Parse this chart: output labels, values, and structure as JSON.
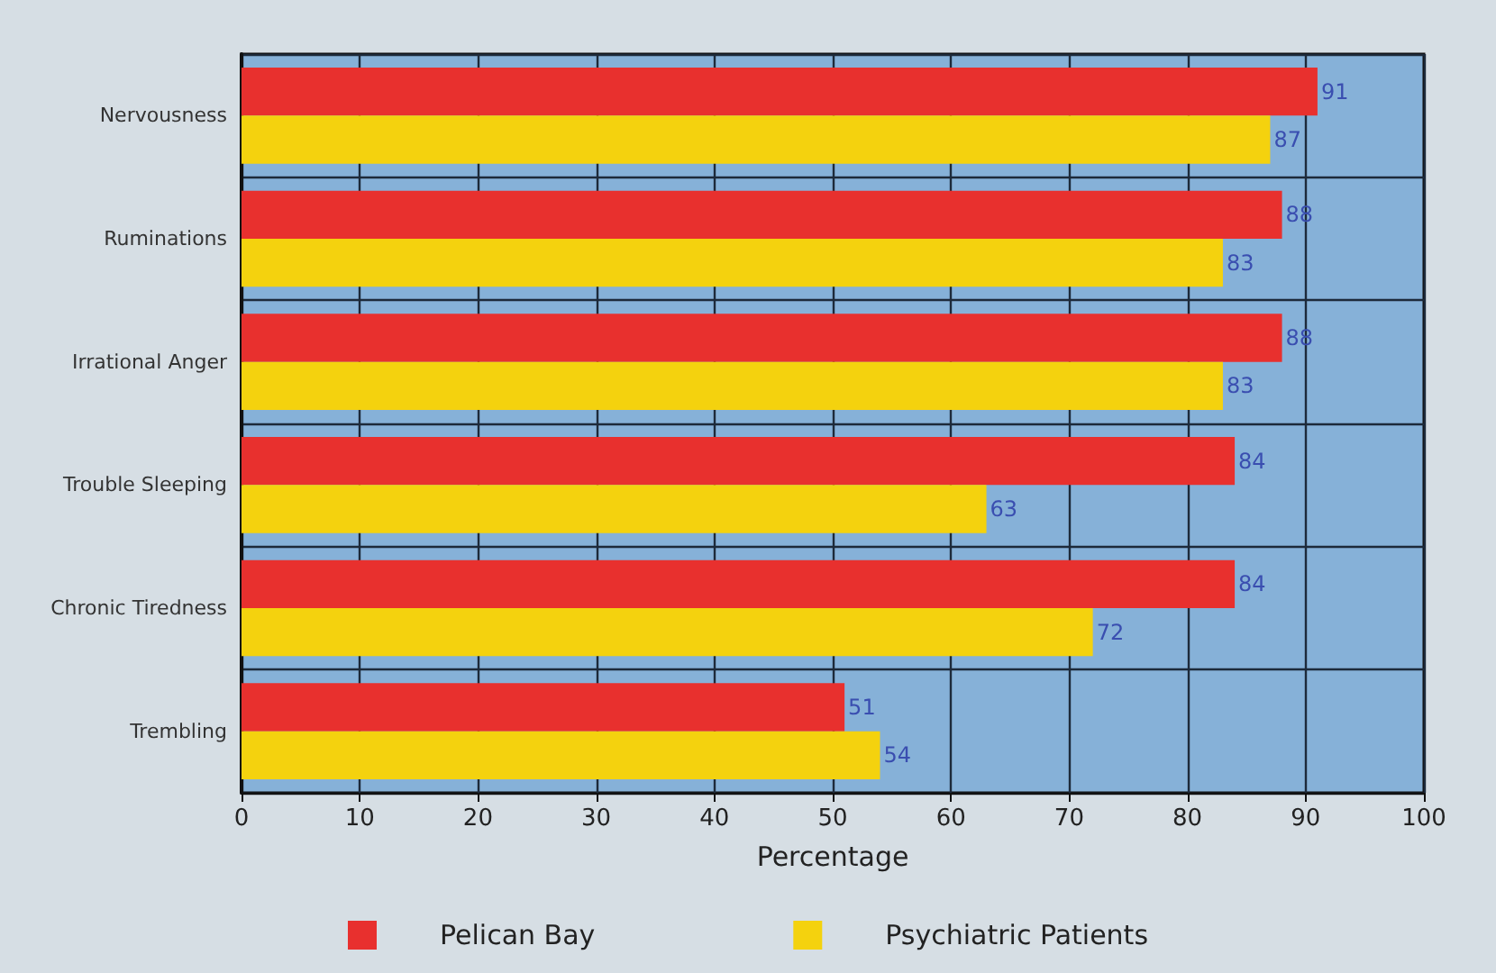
{
  "chart_data": {
    "type": "bar",
    "orientation": "horizontal",
    "xlabel": "Percentage",
    "categories": [
      "Nervousness",
      "Ruminations",
      "Irrational Anger",
      "Trouble Sleeping",
      "Chronic Tiredness",
      "Trembling"
    ],
    "series": [
      {
        "name": "Pelican Bay",
        "color": "#e8302e",
        "values": [
          91,
          88,
          88,
          84,
          84,
          51
        ]
      },
      {
        "name": "Psychiatric Patients",
        "color": "#f4d20e",
        "values": [
          87,
          83,
          83,
          63,
          72,
          54
        ]
      }
    ],
    "xlim": [
      0,
      100
    ],
    "xticks": [
      0,
      10,
      20,
      30,
      40,
      50,
      60,
      70,
      80,
      90,
      100
    ],
    "grid": true,
    "legend": "bottom",
    "data_labels": true
  }
}
